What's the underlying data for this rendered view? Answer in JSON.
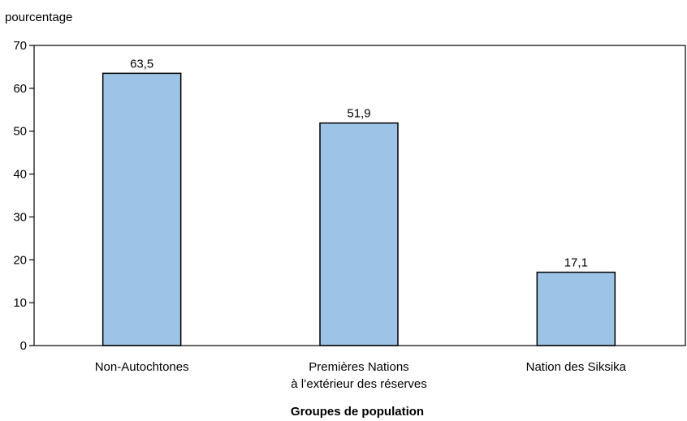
{
  "chart_data": {
    "type": "bar",
    "ylabel": "pourcentage",
    "xlabel": "Groupes de population",
    "categories": [
      [
        "Non-Autochtones"
      ],
      [
        "Premières Nations",
        "à l’extérieur des réserves"
      ],
      [
        "Nation des Siksika"
      ]
    ],
    "values": [
      63.5,
      51.9,
      17.1
    ],
    "value_labels": [
      "63,5",
      "51,9",
      "17,1"
    ],
    "ylim": [
      0,
      70
    ],
    "yticks": [
      0,
      10,
      20,
      30,
      40,
      50,
      60,
      70
    ],
    "grid": false,
    "legend": "none",
    "colors": {
      "bar_fill": "#9DC3E6",
      "bar_stroke": "#000000",
      "axis": "#000000"
    }
  }
}
